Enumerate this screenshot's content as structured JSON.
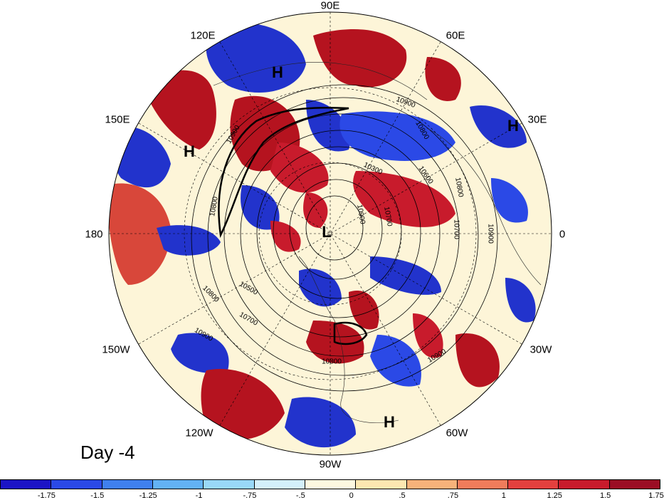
{
  "longitude_labels": {
    "lon_90E": "90E",
    "lon_120E": "120E",
    "lon_60E": "60E",
    "lon_150E": "150E",
    "lon_30E": "30E",
    "lon_180": "180",
    "lon_0": "0",
    "lon_150W": "150W",
    "lon_30W": "30W",
    "lon_120W": "120W",
    "lon_60W": "60W",
    "lon_90W": "90W"
  },
  "pressure_centers": [
    "H",
    "H",
    "H",
    "L",
    "H"
  ],
  "contour_labels": [
    "10900",
    "10800",
    "10600",
    "10300",
    "10800",
    "10700",
    "10900",
    "10900",
    "10900",
    "10700",
    "10800",
    "10500",
    "10800",
    "10700",
    "10900",
    "10900",
    "10800"
  ],
  "panel_label": "Day -4",
  "colorbar": {
    "colors": [
      "#1c14c6",
      "#2b49e6",
      "#3f80ef",
      "#63b2f4",
      "#99d8f8",
      "#d4f0fb",
      "#fdf8e0",
      "#fde7b1",
      "#f6b27a",
      "#f07c5b",
      "#e3403e",
      "#c81b2c",
      "#9b0e24"
    ],
    "ticks": [
      "-1.75",
      "-1.5",
      "-1.25",
      "-1",
      "-.75",
      "-.5",
      "0",
      ".5",
      ".75",
      "1",
      "1.25",
      "1.5",
      "1.75"
    ]
  }
}
